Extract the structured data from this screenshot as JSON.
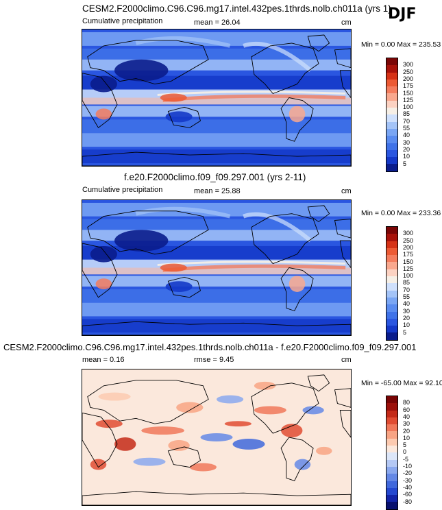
{
  "season": "DJF",
  "panels": [
    {
      "title": "CESM2.F2000climo.C96.C96.mg17.intel.432pes.1thrds.nolb.ch011a (yrs 1)",
      "left_label": "Cumulative precipitation",
      "mean_label": "mean =  26.04",
      "units": "cm",
      "minmax": "Min =   0.00 Max = 235.53",
      "kind": "field"
    },
    {
      "title": "f.e20.F2000climo.f09_f09.297.001 (yrs 2-11)",
      "left_label": "Cumulative precipitation",
      "mean_label": "mean =  25.88",
      "units": "cm",
      "minmax": "Min =   0.00 Max = 233.36",
      "kind": "field"
    },
    {
      "title": "CESM2.F2000climo.C96.C96.mg17.intel.432pes.1thrds.nolb.ch011a - f.e20.F2000climo.f09_f09.297.001",
      "left_label": "mean =  0.16",
      "mean_label": "rmse =  9.45",
      "units": "cm",
      "minmax": "Min = -65.00 Max =  92.10",
      "kind": "diff"
    }
  ],
  "chart_data": [
    {
      "type": "heatmap",
      "title": "CESM2.F2000climo.C96.C96.mg17.intel.432pes.1thrds.nolb.ch011a (yrs 1)",
      "field": "Cumulative precipitation",
      "units": "cm",
      "mean": 26.04,
      "min": 0.0,
      "max": 235.53,
      "colorbar_levels": [
        5,
        10,
        20,
        30,
        40,
        55,
        70,
        85,
        100,
        125,
        150,
        175,
        200,
        250,
        300
      ],
      "colorbar_colors": [
        "#0a1c8c",
        "#1438c8",
        "#2a56e0",
        "#3f72e8",
        "#5a8cf0",
        "#7aa6f4",
        "#a4c4f8",
        "#cfe0fc",
        "#f6efe6",
        "#fcd2c2",
        "#f9a88e",
        "#f47d5e",
        "#ec5a34",
        "#d63216",
        "#a8120a",
        "#7a0606"
      ]
    },
    {
      "type": "heatmap",
      "title": "f.e20.F2000climo.f09_f09.297.001 (yrs 2-11)",
      "field": "Cumulative precipitation",
      "units": "cm",
      "mean": 25.88,
      "min": 0.0,
      "max": 233.36,
      "colorbar_levels": [
        5,
        10,
        20,
        30,
        40,
        55,
        70,
        85,
        100,
        125,
        150,
        175,
        200,
        250,
        300
      ],
      "colorbar_colors": [
        "#0a1c8c",
        "#1438c8",
        "#2a56e0",
        "#3f72e8",
        "#5a8cf0",
        "#7aa6f4",
        "#a4c4f8",
        "#cfe0fc",
        "#f6efe6",
        "#fcd2c2",
        "#f9a88e",
        "#f47d5e",
        "#ec5a34",
        "#d63216",
        "#a8120a",
        "#7a0606"
      ]
    },
    {
      "type": "heatmap",
      "title": "CESM2.F2000climo.C96.C96.mg17.intel.432pes.1thrds.nolb.ch011a - f.e20.F2000climo.f09_f09.297.001",
      "units": "cm",
      "mean": 0.16,
      "rmse": 9.45,
      "min": -65.0,
      "max": 92.1,
      "colorbar_levels": [
        -80,
        -60,
        -40,
        -30,
        -20,
        -10,
        -5,
        0,
        5,
        10,
        20,
        30,
        40,
        60,
        80
      ],
      "colorbar_colors": [
        "#08106e",
        "#1224a8",
        "#2448d0",
        "#4068dc",
        "#6488e6",
        "#8aa8ee",
        "#b4c8f4",
        "#dce6f8",
        "#fbe8dc",
        "#fccab0",
        "#f8a484",
        "#f0785a",
        "#e04c32",
        "#c42a18",
        "#9c100a",
        "#780404"
      ]
    }
  ]
}
